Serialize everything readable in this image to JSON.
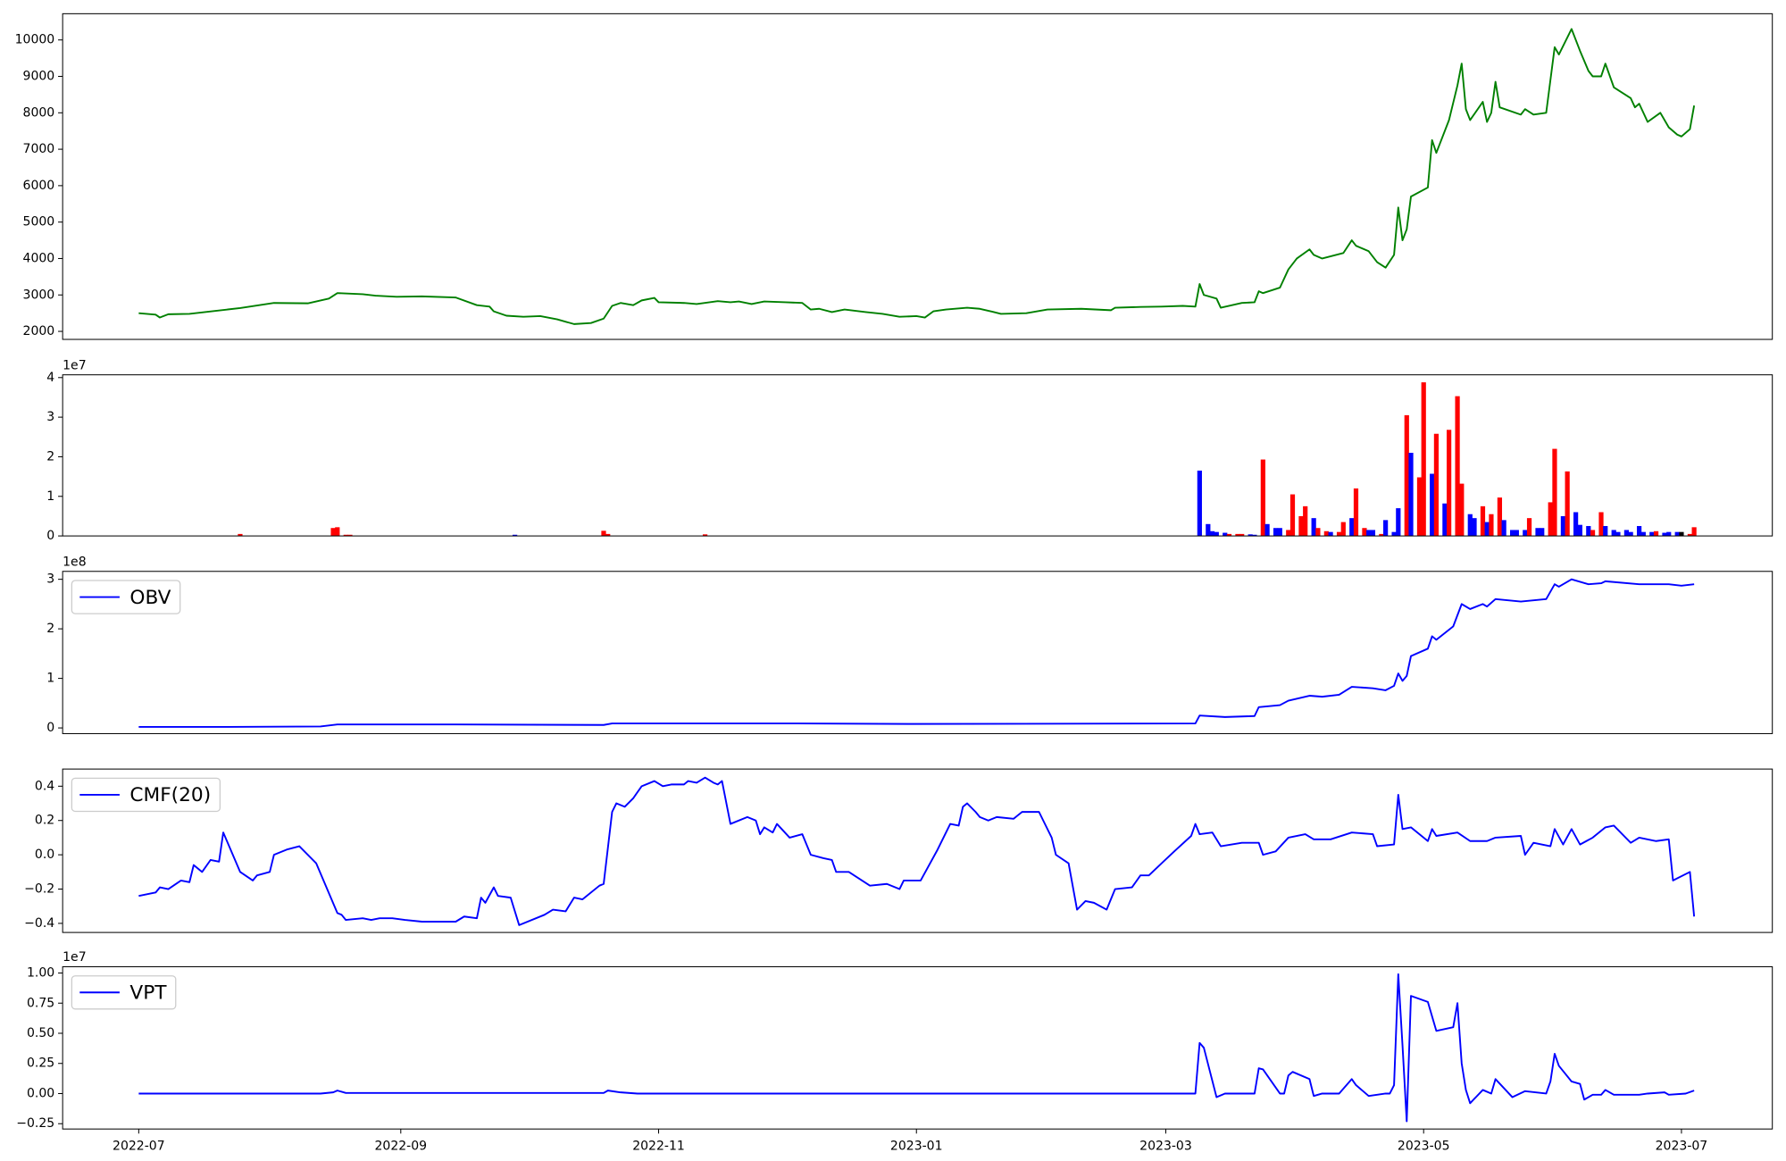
{
  "chart_data": [
    {
      "type": "line",
      "xlim": [
        -18,
        386.5
      ],
      "ylim": [
        1780,
        10720
      ],
      "yticks": [
        2000,
        3000,
        4000,
        5000,
        6000,
        7000,
        8000,
        9000,
        10000
      ],
      "x": [
        0,
        4,
        5,
        7,
        12,
        18,
        24,
        32,
        40,
        45,
        47,
        53,
        56,
        61,
        67,
        75,
        80,
        83,
        84,
        87,
        91,
        95,
        99,
        103,
        107,
        110,
        112,
        114,
        117,
        119,
        122,
        123,
        129,
        132,
        137,
        140,
        142,
        145,
        148,
        153,
        157,
        159,
        161,
        164,
        167,
        172,
        176,
        180,
        184,
        186,
        188,
        191,
        196,
        199,
        202,
        204,
        210,
        215,
        223,
        230,
        231,
        237,
        242,
        247,
        250,
        251,
        252,
        255,
        256,
        261,
        264,
        265,
        266,
        270,
        272,
        274,
        277,
        278,
        280,
        285,
        287,
        288,
        291,
        293,
        295,
        297,
        298,
        299,
        300,
        301,
        305,
        306,
        307,
        310,
        312,
        313,
        314,
        315,
        318,
        319,
        320,
        321,
        322,
        327,
        328,
        330,
        333,
        335,
        336,
        339,
        341,
        343,
        344,
        346,
        347,
        349,
        353,
        354,
        355,
        357,
        360,
        362,
        364,
        365,
        367,
        368
      ],
      "series": [
        {
          "color": "green",
          "values": [
            2500,
            2460,
            2380,
            2470,
            2480,
            2560,
            2640,
            2780,
            2770,
            2900,
            3050,
            3020,
            2980,
            2950,
            2960,
            2930,
            2720,
            2680,
            2550,
            2430,
            2400,
            2420,
            2330,
            2200,
            2230,
            2350,
            2700,
            2780,
            2720,
            2850,
            2920,
            2800,
            2780,
            2750,
            2830,
            2800,
            2820,
            2750,
            2820,
            2800,
            2780,
            2600,
            2620,
            2530,
            2600,
            2530,
            2480,
            2400,
            2420,
            2380,
            2550,
            2600,
            2650,
            2620,
            2540,
            2480,
            2500,
            2600,
            2620,
            2580,
            2650,
            2670,
            2680,
            2700,
            2680,
            3300,
            3000,
            2900,
            2650,
            2780,
            2800,
            3100,
            3050,
            3200,
            3700,
            4000,
            4250,
            4100,
            4000,
            4150,
            4500,
            4350,
            4200,
            3900,
            3750,
            4100,
            5400,
            4500,
            4800,
            5700,
            5950,
            7250,
            6900,
            7800,
            8750,
            9350,
            8100,
            7800,
            8300,
            7750,
            8000,
            8850,
            8150,
            7950,
            8100,
            7950,
            8000,
            9800,
            9600,
            10300,
            9700,
            9150,
            9000,
            9000,
            9350,
            8700,
            8400,
            8150,
            8250,
            7750,
            8000,
            7600,
            7400,
            7350,
            7550,
            8200
          ]
        }
      ]
    },
    {
      "type": "bar",
      "xlim": [
        -18,
        386.5
      ],
      "ylim": [
        0,
        40700000
      ],
      "offset_label": "1e7",
      "yticks": [
        0,
        {
          "value": 10000000,
          "label": "1"
        },
        {
          "value": 20000000,
          "label": "2"
        },
        {
          "value": 30000000,
          "label": "3"
        },
        {
          "value": 40000000,
          "label": "4"
        }
      ],
      "x": [
        24,
        46,
        47,
        49,
        50,
        89,
        110,
        111,
        134,
        251,
        253,
        254,
        255,
        257,
        258,
        260,
        261,
        263,
        264,
        266,
        267,
        269,
        270,
        272,
        273,
        275,
        276,
        278,
        279,
        281,
        282,
        284,
        285,
        287,
        288,
        290,
        291,
        292,
        294,
        295,
        297,
        298,
        300,
        301,
        303,
        304,
        306,
        307,
        309,
        310,
        312,
        313,
        315,
        316,
        318,
        319,
        320,
        322,
        323,
        325,
        326,
        328,
        329,
        331,
        332,
        334,
        335,
        337,
        338,
        340,
        341,
        343,
        344,
        346,
        347,
        349,
        350,
        352,
        353,
        355,
        356,
        358,
        359,
        361,
        362,
        364,
        365,
        367,
        368
      ],
      "values": [
        500000,
        2000000,
        2200000,
        300000,
        300000,
        300000,
        1300000,
        500000,
        400000,
        16500000,
        3000000,
        1200000,
        1000000,
        800000,
        500000,
        500000,
        500000,
        400000,
        300000,
        19300000,
        3000000,
        2000000,
        2000000,
        1500000,
        10500000,
        5000000,
        7500000,
        4500000,
        2000000,
        1200000,
        1000000,
        1000000,
        3500000,
        4500000,
        12000000,
        2000000,
        1500000,
        1500000,
        500000,
        4000000,
        1000000,
        7000000,
        30500000,
        21000000,
        14800000,
        38800000,
        15700000,
        25800000,
        8200000,
        26800000,
        35300000,
        13200000,
        5500000,
        4500000,
        7500000,
        3500000,
        5500000,
        9700000,
        4000000,
        1500000,
        1500000,
        1500000,
        4500000,
        2000000,
        2000000,
        8500000,
        22000000,
        5000000,
        16300000,
        6000000,
        2800000,
        2500000,
        1500000,
        6000000,
        2500000,
        1500000,
        1000000,
        1500000,
        1000000,
        2500000,
        1000000,
        1000000,
        1200000,
        800000,
        1000000,
        1000000,
        1000000,
        500000,
        2200000
      ],
      "colors": [
        "red",
        "red",
        "red",
        "red",
        "red",
        "blue",
        "red",
        "red",
        "red",
        "blue",
        "blue",
        "blue",
        "blue",
        "blue",
        "red",
        "red",
        "red",
        "blue",
        "blue",
        "red",
        "blue",
        "blue",
        "blue",
        "red",
        "red",
        "red",
        "red",
        "blue",
        "red",
        "red",
        "blue",
        "red",
        "red",
        "blue",
        "red",
        "red",
        "blue",
        "blue",
        "red",
        "blue",
        "blue",
        "blue",
        "red",
        "blue",
        "red",
        "red",
        "blue",
        "red",
        "blue",
        "red",
        "red",
        "red",
        "blue",
        "blue",
        "red",
        "blue",
        "red",
        "red",
        "blue",
        "blue",
        "blue",
        "blue",
        "red",
        "blue",
        "blue",
        "red",
        "red",
        "blue",
        "red",
        "blue",
        "blue",
        "blue",
        "red",
        "red",
        "blue",
        "blue",
        "blue",
        "blue",
        "blue",
        "blue",
        "blue",
        "blue",
        "red",
        "blue",
        "blue",
        "blue",
        "black",
        "red",
        "red"
      ]
    },
    {
      "type": "line",
      "xlim": [
        -18,
        386.5
      ],
      "ylim": [
        -11500000,
        316000000
      ],
      "offset_label": "1e8",
      "legend": "upper left",
      "yticks": [
        0,
        {
          "value": 100000000,
          "label": "1"
        },
        {
          "value": 200000000,
          "label": "2"
        },
        {
          "value": 300000000,
          "label": "3"
        }
      ],
      "x": [
        0,
        21,
        43,
        47,
        75,
        110,
        112,
        156,
        183,
        250,
        251,
        257,
        264,
        265,
        270,
        272,
        277,
        280,
        284,
        287,
        292,
        295,
        297,
        298,
        299,
        300,
        301,
        305,
        306,
        307,
        311,
        313,
        315,
        318,
        319,
        321,
        327,
        333,
        335,
        336,
        339,
        343,
        346,
        347,
        355,
        362,
        365,
        368
      ],
      "series": [
        {
          "name": "OBV",
          "color": "blue",
          "values": [
            2000000,
            2000000,
            3000000,
            7000000,
            7000000,
            6000000,
            9000000,
            9000000,
            8000000,
            9000000,
            25000000,
            22000000,
            24000000,
            42000000,
            46000000,
            55000000,
            65000000,
            63000000,
            67000000,
            83000000,
            80000000,
            76000000,
            85000000,
            110000000,
            95000000,
            105000000,
            145000000,
            160000000,
            185000000,
            178000000,
            205000000,
            250000000,
            240000000,
            250000000,
            245000000,
            260000000,
            255000000,
            260000000,
            290000000,
            285000000,
            300000000,
            290000000,
            292000000,
            296000000,
            290000000,
            290000000,
            287000000,
            290000000
          ]
        }
      ]
    },
    {
      "type": "line",
      "xlim": [
        -18,
        386.5
      ],
      "ylim": [
        -0.453,
        0.5
      ],
      "legend": "upper left",
      "yticks": [
        {
          "value": -0.4,
          "label": "−0.4"
        },
        {
          "value": -0.2,
          "label": "−0.2"
        },
        {
          "value": 0,
          "label": "0.0"
        },
        0.2,
        0.4
      ],
      "x": [
        0,
        4,
        5,
        7,
        10,
        12,
        13,
        15,
        17,
        19,
        20,
        24,
        27,
        28,
        31,
        32,
        35,
        38,
        42,
        47,
        48,
        49,
        53,
        55,
        57,
        60,
        63,
        67,
        75,
        77,
        80,
        81,
        82,
        84,
        85,
        88,
        90,
        96,
        98,
        101,
        103,
        105,
        109,
        110,
        112,
        113,
        115,
        117,
        119,
        122,
        124,
        126,
        129,
        130,
        132,
        134,
        136,
        137,
        138,
        140,
        144,
        146,
        147,
        148,
        150,
        151,
        154,
        157,
        159,
        162,
        164,
        165,
        168,
        173,
        177,
        180,
        181,
        185,
        189,
        192,
        194,
        195,
        196,
        198,
        199,
        201,
        203,
        207,
        209,
        213,
        216,
        217,
        220,
        222,
        224,
        226,
        229,
        231,
        235,
        237,
        239,
        242,
        245,
        249,
        250,
        251,
        254,
        256,
        261,
        265,
        266,
        269,
        272,
        276,
        278,
        282,
        287,
        292,
        293,
        297,
        298,
        299,
        301,
        305,
        306,
        307,
        312,
        315,
        319,
        321,
        327,
        328,
        330,
        334,
        335,
        337,
        339,
        341,
        344,
        347,
        349,
        353,
        355,
        359,
        362,
        363,
        367,
        368
      ],
      "series": [
        {
          "name": "CMF(20)",
          "color": "blue",
          "values": [
            -0.24,
            -0.22,
            -0.19,
            -0.2,
            -0.15,
            -0.16,
            -0.06,
            -0.1,
            -0.03,
            -0.04,
            0.13,
            -0.1,
            -0.15,
            -0.12,
            -0.1,
            0.0,
            0.03,
            0.05,
            -0.05,
            -0.34,
            -0.35,
            -0.38,
            -0.37,
            -0.38,
            -0.37,
            -0.37,
            -0.38,
            -0.39,
            -0.39,
            -0.36,
            -0.37,
            -0.25,
            -0.28,
            -0.19,
            -0.24,
            -0.25,
            -0.41,
            -0.35,
            -0.32,
            -0.33,
            -0.25,
            -0.26,
            -0.18,
            -0.17,
            0.25,
            0.3,
            0.28,
            0.33,
            0.4,
            0.43,
            0.4,
            0.41,
            0.41,
            0.43,
            0.42,
            0.45,
            0.42,
            0.41,
            0.43,
            0.18,
            0.22,
            0.2,
            0.12,
            0.16,
            0.13,
            0.18,
            0.1,
            0.12,
            0.0,
            -0.02,
            -0.03,
            -0.1,
            -0.1,
            -0.18,
            -0.17,
            -0.2,
            -0.15,
            -0.15,
            0.03,
            0.18,
            0.17,
            0.28,
            0.3,
            0.25,
            0.22,
            0.2,
            0.22,
            0.21,
            0.25,
            0.25,
            0.1,
            0.0,
            -0.05,
            -0.32,
            -0.27,
            -0.28,
            -0.32,
            -0.2,
            -0.19,
            -0.12,
            -0.12,
            -0.05,
            0.02,
            0.11,
            0.18,
            0.12,
            0.13,
            0.05,
            0.07,
            0.07,
            0.0,
            0.02,
            0.1,
            0.12,
            0.09,
            0.09,
            0.13,
            0.12,
            0.05,
            0.06,
            0.35,
            0.15,
            0.16,
            0.08,
            0.15,
            0.11,
            0.13,
            0.08,
            0.08,
            0.1,
            0.11,
            0.0,
            0.07,
            0.05,
            0.15,
            0.06,
            0.15,
            0.06,
            0.1,
            0.16,
            0.17,
            0.07,
            0.1,
            0.08,
            0.09,
            -0.15,
            -0.1,
            -0.36
          ]
        }
      ]
    },
    {
      "type": "line",
      "xlim": [
        -18,
        386.5
      ],
      "ylim": [
        -2940000,
        10520000
      ],
      "offset_label": "1e7",
      "legend": "upper left",
      "yticks": [
        {
          "value": -2500000,
          "label": "−0.25"
        },
        {
          "value": 0,
          "label": "0.00"
        },
        {
          "value": 2500000,
          "label": "0.25"
        },
        {
          "value": 5000000,
          "label": "0.50"
        },
        {
          "value": 7500000,
          "label": "0.75"
        },
        {
          "value": 10000000,
          "label": "1.00"
        }
      ],
      "xticks": [
        {
          "value": 0,
          "label": "2022-07"
        },
        {
          "value": 62,
          "label": "2022-09"
        },
        {
          "value": 123,
          "label": "2022-11"
        },
        {
          "value": 184,
          "label": "2023-01"
        },
        {
          "value": 243,
          "label": "2023-03"
        },
        {
          "value": 304,
          "label": "2023-05"
        },
        {
          "value": 365,
          "label": "2023-07"
        }
      ],
      "x": [
        0,
        43,
        46,
        47,
        49,
        110,
        111,
        114,
        118,
        250,
        251,
        252,
        255,
        257,
        264,
        265,
        266,
        270,
        271,
        272,
        273,
        277,
        278,
        280,
        284,
        287,
        288,
        291,
        295,
        296,
        297,
        298,
        299,
        300,
        301,
        305,
        307,
        311,
        312,
        313,
        314,
        315,
        318,
        320,
        321,
        325,
        328,
        333,
        334,
        335,
        336,
        339,
        341,
        342,
        344,
        346,
        347,
        349,
        355,
        357,
        361,
        362,
        366,
        368
      ],
      "series": [
        {
          "name": "VPT",
          "color": "blue",
          "values": [
            0,
            0,
            100000,
            250000,
            50000,
            50000,
            250000,
            100000,
            0,
            0,
            4200000,
            3800000,
            -300000,
            0,
            0,
            2100000,
            2000000,
            0,
            0,
            1500000,
            1800000,
            1200000,
            -200000,
            0,
            0,
            1200000,
            700000,
            -200000,
            0,
            0,
            700000,
            9900000,
            4000000,
            -2300000,
            8100000,
            7600000,
            5200000,
            5500000,
            7500000,
            2500000,
            300000,
            -800000,
            300000,
            0,
            1200000,
            -300000,
            200000,
            0,
            1000000,
            3300000,
            2300000,
            1000000,
            800000,
            -500000,
            -100000,
            -100000,
            300000,
            -100000,
            -100000,
            0,
            100000,
            -100000,
            0,
            250000
          ]
        }
      ]
    }
  ]
}
